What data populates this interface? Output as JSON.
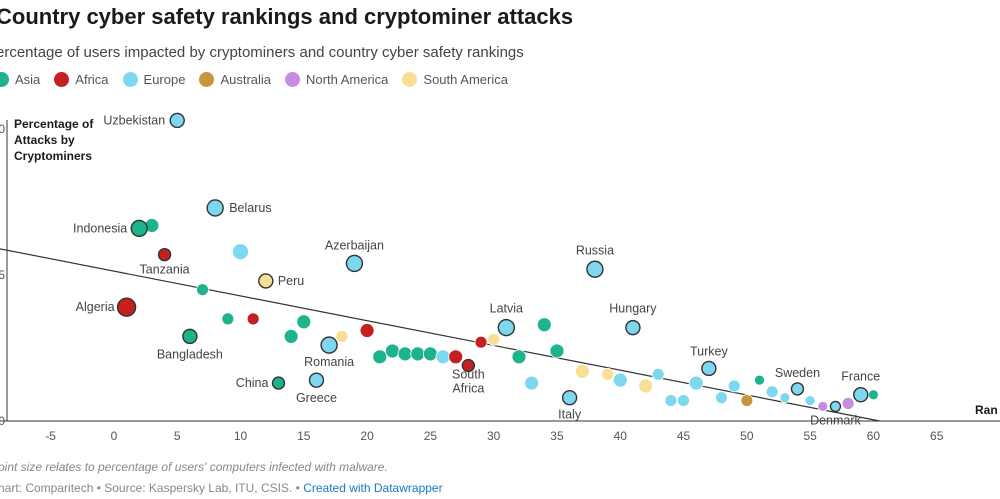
{
  "title": "Country cyber safety rankings and cryptominer attacks",
  "subtitle": "ercentage of users impacted by cryptominers and country cyber safety rankings",
  "note": "oint size relates to percentage of users' computers infected with malware.",
  "footer": {
    "text": "hart: Comparitech • Source: Kaspersky Lab, ITU, CSIS. • ",
    "link": "Created with Datawrapper"
  },
  "legend": [
    {
      "name": "Asia",
      "color": "#1db38c"
    },
    {
      "name": "Africa",
      "color": "#c5201f"
    },
    {
      "name": "Europe",
      "color": "#7dd8ef"
    },
    {
      "name": "Australia",
      "color": "#c6963f"
    },
    {
      "name": "North America",
      "color": "#c78be0"
    },
    {
      "name": "South America",
      "color": "#f7df95"
    }
  ],
  "chart_data": {
    "type": "scatter",
    "xlabel": "Ran",
    "ylabel": [
      "Percentage of",
      "Attacks by",
      "Cryptominers"
    ],
    "xlim": [
      -9,
      70
    ],
    "ylim": [
      0,
      11
    ],
    "x_ticks": [
      "-5",
      "0",
      "5",
      "10",
      "15",
      "20",
      "25",
      "30",
      "35",
      "40",
      "45",
      "50",
      "55",
      "60",
      "65"
    ],
    "y_ticks": [
      "0",
      "5",
      "0"
    ],
    "trendline": {
      "x1": -9,
      "y1": 5.9,
      "x2": 60.5,
      "y2": 0
    },
    "points": [
      {
        "x": 5,
        "y": 10.3,
        "r": 7,
        "region": "Europe",
        "label": "Uzbekistan",
        "outline": true
      },
      {
        "x": 8,
        "y": 7.3,
        "r": 8,
        "region": "Europe",
        "label": "Belarus",
        "outline": true
      },
      {
        "x": 2,
        "y": 6.6,
        "r": 8,
        "region": "Asia",
        "label": "Indonesia",
        "outline": true
      },
      {
        "x": 3,
        "y": 6.7,
        "r": 7,
        "region": "Asia",
        "label": ""
      },
      {
        "x": 4,
        "y": 5.7,
        "r": 6,
        "region": "Africa",
        "label": "Tanzania",
        "outline": true
      },
      {
        "x": 10,
        "y": 5.8,
        "r": 8,
        "region": "Europe",
        "label": ""
      },
      {
        "x": 12,
        "y": 4.8,
        "r": 7,
        "region": "South America",
        "label": "Peru",
        "outline": true
      },
      {
        "x": 19,
        "y": 5.4,
        "r": 8,
        "region": "Europe",
        "label": "Azerbaijan",
        "outline": true
      },
      {
        "x": 38,
        "y": 5.2,
        "r": 8,
        "region": "Europe",
        "label": "Russia",
        "outline": true
      },
      {
        "x": 7,
        "y": 4.5,
        "r": 6,
        "region": "Asia",
        "label": ""
      },
      {
        "x": 1,
        "y": 3.9,
        "r": 9,
        "region": "Africa",
        "label": "Algeria",
        "outline": true
      },
      {
        "x": 9,
        "y": 3.5,
        "r": 6,
        "region": "Asia",
        "label": ""
      },
      {
        "x": 11,
        "y": 3.5,
        "r": 6,
        "region": "Africa",
        "label": ""
      },
      {
        "x": 15,
        "y": 3.4,
        "r": 7,
        "region": "Asia",
        "label": ""
      },
      {
        "x": 14,
        "y": 2.9,
        "r": 7,
        "region": "Asia",
        "label": ""
      },
      {
        "x": 6,
        "y": 2.9,
        "r": 7,
        "region": "Asia",
        "label": "Bangladesh",
        "outline": true
      },
      {
        "x": 17,
        "y": 2.6,
        "r": 8,
        "region": "Europe",
        "label": "Romania",
        "outline": true
      },
      {
        "x": 18,
        "y": 2.9,
        "r": 6,
        "region": "South America",
        "label": ""
      },
      {
        "x": 20,
        "y": 3.1,
        "r": 7,
        "region": "Africa",
        "label": ""
      },
      {
        "x": 21,
        "y": 2.2,
        "r": 7,
        "region": "Asia",
        "label": ""
      },
      {
        "x": 22,
        "y": 2.4,
        "r": 7,
        "region": "Asia",
        "label": ""
      },
      {
        "x": 23,
        "y": 2.3,
        "r": 7,
        "region": "Asia",
        "label": ""
      },
      {
        "x": 24,
        "y": 2.3,
        "r": 7,
        "region": "Asia",
        "label": ""
      },
      {
        "x": 25,
        "y": 2.3,
        "r": 7,
        "region": "Asia",
        "label": ""
      },
      {
        "x": 26,
        "y": 2.2,
        "r": 7,
        "region": "Europe",
        "label": ""
      },
      {
        "x": 27,
        "y": 2.2,
        "r": 7,
        "region": "Africa",
        "label": ""
      },
      {
        "x": 28,
        "y": 1.9,
        "r": 6,
        "region": "Africa",
        "label": "South Africa",
        "outline": true
      },
      {
        "x": 29,
        "y": 2.7,
        "r": 6,
        "region": "Africa",
        "label": ""
      },
      {
        "x": 30,
        "y": 2.8,
        "r": 6,
        "region": "South America",
        "label": ""
      },
      {
        "x": 31,
        "y": 3.2,
        "r": 8,
        "region": "Europe",
        "label": "Latvia",
        "outline": true
      },
      {
        "x": 32,
        "y": 2.2,
        "r": 7,
        "region": "Asia",
        "label": ""
      },
      {
        "x": 33,
        "y": 1.3,
        "r": 7,
        "region": "Europe",
        "label": ""
      },
      {
        "x": 34,
        "y": 3.3,
        "r": 7,
        "region": "Asia",
        "label": ""
      },
      {
        "x": 35,
        "y": 2.4,
        "r": 7,
        "region": "Asia",
        "label": ""
      },
      {
        "x": 36,
        "y": 0.8,
        "r": 7,
        "region": "Europe",
        "label": "Italy",
        "outline": true
      },
      {
        "x": 37,
        "y": 1.7,
        "r": 7,
        "region": "South America",
        "label": ""
      },
      {
        "x": 39,
        "y": 1.6,
        "r": 6,
        "region": "South America",
        "label": ""
      },
      {
        "x": 40,
        "y": 1.4,
        "r": 7,
        "region": "Europe",
        "label": ""
      },
      {
        "x": 41,
        "y": 3.2,
        "r": 7,
        "region": "Europe",
        "label": "Hungary",
        "outline": true
      },
      {
        "x": 42,
        "y": 1.2,
        "r": 7,
        "region": "South America",
        "label": ""
      },
      {
        "x": 43,
        "y": 1.6,
        "r": 6,
        "region": "Europe",
        "label": ""
      },
      {
        "x": 44,
        "y": 0.7,
        "r": 6,
        "region": "Europe",
        "label": ""
      },
      {
        "x": 45,
        "y": 0.7,
        "r": 6,
        "region": "Europe",
        "label": ""
      },
      {
        "x": 46,
        "y": 1.3,
        "r": 7,
        "region": "Europe",
        "label": ""
      },
      {
        "x": 47,
        "y": 1.8,
        "r": 7,
        "region": "Europe",
        "label": "Turkey",
        "outline": true
      },
      {
        "x": 48,
        "y": 0.8,
        "r": 6,
        "region": "Europe",
        "label": ""
      },
      {
        "x": 49,
        "y": 1.2,
        "r": 6,
        "region": "Europe",
        "label": ""
      },
      {
        "x": 50,
        "y": 0.7,
        "r": 6,
        "region": "Australia",
        "label": ""
      },
      {
        "x": 51,
        "y": 1.4,
        "r": 5,
        "region": "Asia",
        "label": ""
      },
      {
        "x": 52,
        "y": 1.0,
        "r": 6,
        "region": "Europe",
        "label": ""
      },
      {
        "x": 53,
        "y": 0.8,
        "r": 5,
        "region": "Europe",
        "label": ""
      },
      {
        "x": 54,
        "y": 1.1,
        "r": 6,
        "region": "Europe",
        "label": "Sweden",
        "outline": true
      },
      {
        "x": 55,
        "y": 0.7,
        "r": 5,
        "region": "Europe",
        "label": ""
      },
      {
        "x": 56,
        "y": 0.5,
        "r": 5,
        "region": "North America",
        "label": ""
      },
      {
        "x": 57,
        "y": 0.5,
        "r": 5,
        "region": "Europe",
        "label": "Denmark",
        "outline": true
      },
      {
        "x": 58,
        "y": 0.6,
        "r": 6,
        "region": "North America",
        "label": ""
      },
      {
        "x": 59,
        "y": 0.9,
        "r": 7,
        "region": "Europe",
        "label": "France",
        "outline": true
      },
      {
        "x": 60,
        "y": 0.9,
        "r": 5,
        "region": "Asia",
        "label": ""
      },
      {
        "x": 13,
        "y": 1.3,
        "r": 6,
        "region": "Asia",
        "label": "China",
        "outline": true
      },
      {
        "x": 16,
        "y": 1.4,
        "r": 7,
        "region": "Europe",
        "label": "Greece",
        "outline": true
      }
    ]
  }
}
